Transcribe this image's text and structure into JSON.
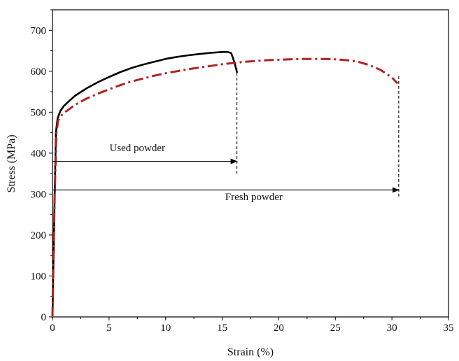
{
  "chart_data": {
    "type": "line",
    "xlabel": "Strain (%)",
    "ylabel": "Stress (MPa)",
    "xlim": [
      0,
      35
    ],
    "ylim": [
      0,
      750
    ],
    "xticks": [
      0,
      5,
      10,
      15,
      20,
      25,
      30,
      35
    ],
    "yticks": [
      0,
      100,
      200,
      300,
      400,
      500,
      600,
      700
    ],
    "grid": false,
    "legend": "none",
    "series": [
      {
        "color": "#000000",
        "style": "solid",
        "x": [
          0,
          0.2,
          0.3,
          0.45,
          0.7,
          1,
          1.5,
          2,
          3,
          4,
          5,
          6,
          7,
          8,
          9,
          10,
          11,
          12,
          13,
          14,
          15,
          15.5,
          15.8,
          16.1,
          16.3
        ],
        "y": [
          0,
          300,
          450,
          485,
          503,
          515,
          528,
          540,
          558,
          573,
          586,
          598,
          608,
          616,
          623,
          630,
          635,
          639,
          642,
          645,
          647,
          647,
          644,
          620,
          598
        ]
      },
      {
        "color": "#b22222",
        "style": "dash-dot",
        "x": [
          0,
          0.2,
          0.35,
          0.5,
          0.8,
          1,
          1.5,
          2,
          3,
          4,
          5,
          6,
          7,
          8,
          9,
          10,
          11,
          12,
          13,
          14,
          15,
          16,
          17,
          18,
          19,
          20,
          21,
          22,
          23,
          24,
          25,
          26,
          27,
          28,
          29,
          30,
          30.5
        ],
        "y": [
          0,
          300,
          450,
          480,
          492,
          498,
          508,
          518,
          533,
          545,
          556,
          566,
          575,
          582,
          589,
          595,
          600,
          605,
          609,
          613,
          617,
          620,
          623,
          625,
          627,
          628,
          629,
          630,
          630,
          630,
          629,
          627,
          623,
          615,
          603,
          585,
          570
        ]
      }
    ],
    "annotations": [
      {
        "text": "Used powder",
        "y": 380,
        "x_start": 0,
        "x_end": 16.3,
        "label_x": 7.5,
        "label_y": 405
      },
      {
        "text": "Fresh powder",
        "y": 310,
        "x_start": 0,
        "x_end": 30.6,
        "label_x": 17.8,
        "label_y": 285
      }
    ],
    "dropline_tops": {
      "used": 608,
      "fresh": 588
    },
    "dropline_bottoms": {
      "used": 345,
      "fresh": 290
    }
  }
}
